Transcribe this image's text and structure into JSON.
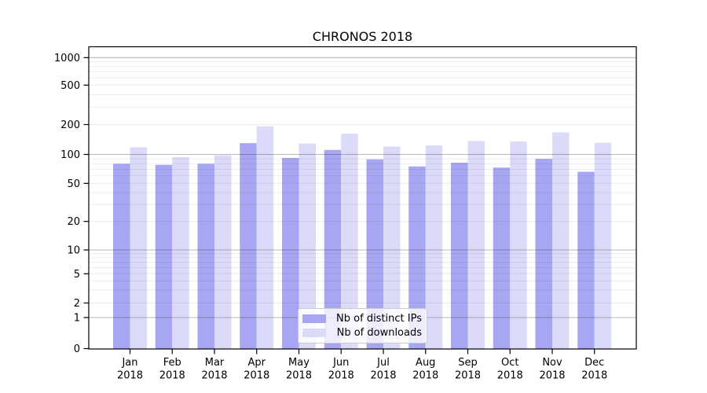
{
  "chart_data": {
    "type": "bar",
    "title": "CHRONOS 2018",
    "xlabel": "",
    "ylabel": "",
    "categories": [
      "Jan",
      "Feb",
      "Mar",
      "Apr",
      "May",
      "Jun",
      "Jul",
      "Aug",
      "Sep",
      "Oct",
      "Nov",
      "Dec"
    ],
    "category_year": "2018",
    "series": [
      {
        "name": "Nb of distinct IPs",
        "color": "#a6a6f2",
        "values": [
          80,
          78,
          80,
          130,
          92,
          111,
          89,
          75,
          82,
          73,
          90,
          66
        ]
      },
      {
        "name": "Nb of downloads",
        "color": "#dbdbf9",
        "values": [
          118,
          94,
          98,
          192,
          129,
          162,
          120,
          123,
          137,
          135,
          167,
          131
        ]
      }
    ],
    "yscale": "symlog",
    "ylim": [
      0,
      1300
    ],
    "yticks": [
      0,
      1,
      2,
      5,
      10,
      20,
      50,
      100,
      200,
      500,
      1000
    ],
    "major_grid_values": [
      1,
      10,
      100,
      1000
    ],
    "minor_grid_values": [
      2,
      3,
      4,
      5,
      6,
      7,
      8,
      9,
      20,
      30,
      40,
      50,
      60,
      70,
      80,
      90,
      200,
      300,
      400,
      500,
      600,
      700,
      800,
      900
    ],
    "grid": "horizontal, major dark + minor light",
    "legend_position": "inside lower-center"
  }
}
